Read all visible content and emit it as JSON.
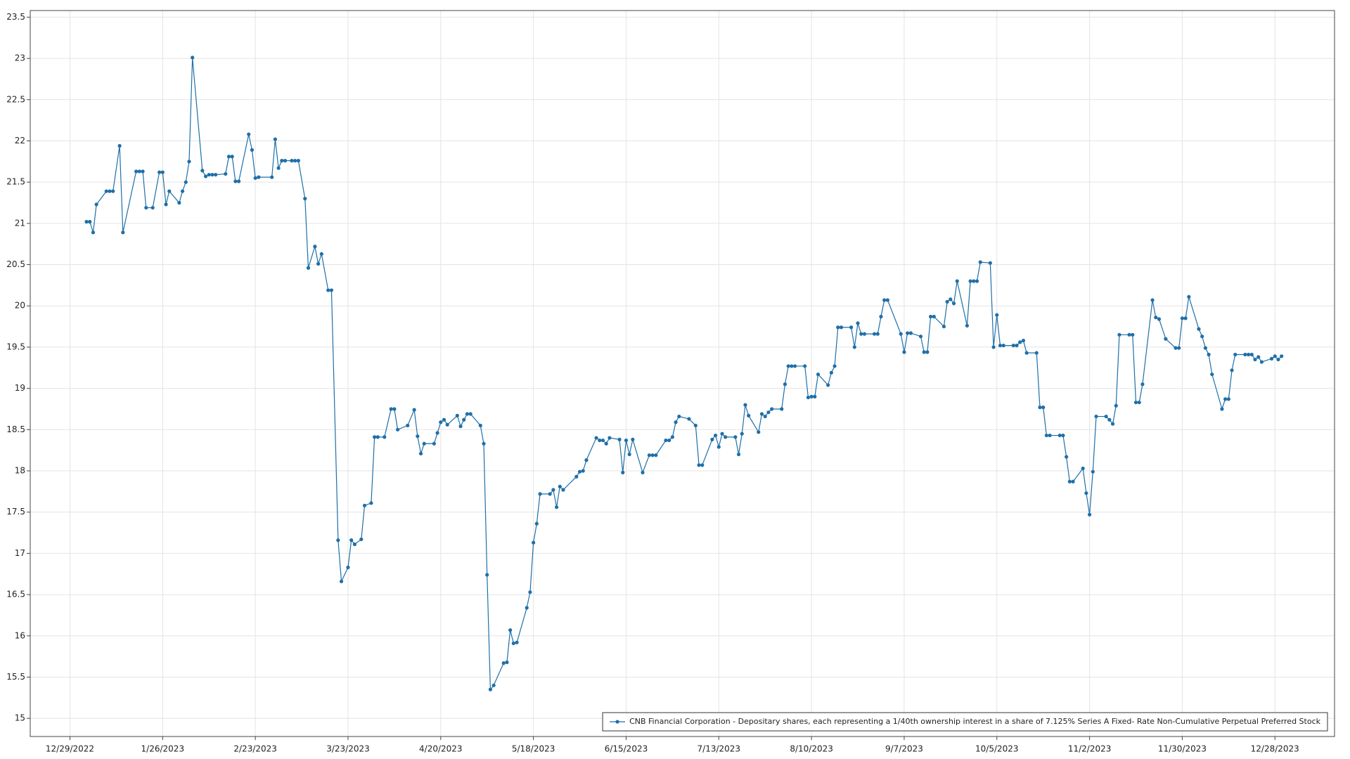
{
  "chart_data": {
    "type": "line",
    "x": [
      "1/3/2023",
      "1/4/2023",
      "1/5/2023",
      "1/6/2023",
      "1/9/2023",
      "1/10/2023",
      "1/11/2023",
      "1/13/2023",
      "1/14/2023",
      "1/18/2023",
      "1/19/2023",
      "1/20/2023",
      "1/21/2023",
      "1/23/2023",
      "1/25/2023",
      "1/26/2023",
      "1/27/2023",
      "1/28/2023",
      "1/31/2023",
      "2/1/2023",
      "2/2/2023",
      "2/3/2023",
      "2/4/2023",
      "2/7/2023",
      "2/8/2023",
      "2/9/2023",
      "2/10/2023",
      "2/11/2023",
      "2/14/2023",
      "2/15/2023",
      "2/16/2023",
      "2/17/2023",
      "2/18/2023",
      "2/21/2023",
      "2/22/2023",
      "2/23/2023",
      "2/24/2023",
      "2/28/2023",
      "3/1/2023",
      "3/2/2023",
      "3/3/2023",
      "3/4/2023",
      "3/6/2023",
      "3/7/2023",
      "3/8/2023",
      "3/10/2023",
      "3/11/2023",
      "3/13/2023",
      "3/14/2023",
      "3/15/2023",
      "3/17/2023",
      "3/18/2023",
      "3/20/2023",
      "3/21/2023",
      "3/23/2023",
      "3/24/2023",
      "3/25/2023",
      "3/27/2023",
      "3/28/2023",
      "3/30/2023",
      "3/31/2023",
      "4/1/2023",
      "4/3/2023",
      "4/5/2023",
      "4/6/2023",
      "4/7/2023",
      "4/10/2023",
      "4/12/2023",
      "4/13/2023",
      "4/14/2023",
      "4/15/2023",
      "4/18/2023",
      "4/19/2023",
      "4/20/2023",
      "4/21/2023",
      "4/22/2023",
      "4/25/2023",
      "4/26/2023",
      "4/27/2023",
      "4/28/2023",
      "4/29/2023",
      "5/2/2023",
      "5/3/2023",
      "5/4/2023",
      "5/5/2023",
      "5/6/2023",
      "5/9/2023",
      "5/10/2023",
      "5/11/2023",
      "5/12/2023",
      "5/13/2023",
      "5/16/2023",
      "5/17/2023",
      "5/18/2023",
      "5/19/2023",
      "5/20/2023",
      "5/23/2023",
      "5/24/2023",
      "5/25/2023",
      "5/26/2023",
      "5/27/2023",
      "5/31/2023",
      "6/1/2023",
      "6/2/2023",
      "6/3/2023",
      "6/6/2023",
      "6/7/2023",
      "6/8/2023",
      "6/9/2023",
      "6/10/2023",
      "6/13/2023",
      "6/14/2023",
      "6/15/2023",
      "6/16/2023",
      "6/17/2023",
      "6/20/2023",
      "6/22/2023",
      "6/23/2023",
      "6/24/2023",
      "6/27/2023",
      "6/28/2023",
      "6/29/2023",
      "6/30/2023",
      "7/1/2023",
      "7/4/2023",
      "7/6/2023",
      "7/7/2023",
      "7/8/2023",
      "7/11/2023",
      "7/12/2023",
      "7/13/2023",
      "7/14/2023",
      "7/15/2023",
      "7/18/2023",
      "7/19/2023",
      "7/20/2023",
      "7/21/2023",
      "7/22/2023",
      "7/25/2023",
      "7/26/2023",
      "7/27/2023",
      "7/28/2023",
      "7/29/2023",
      "8/1/2023",
      "8/2/2023",
      "8/3/2023",
      "8/4/2023",
      "8/5/2023",
      "8/8/2023",
      "8/9/2023",
      "8/10/2023",
      "8/11/2023",
      "8/12/2023",
      "8/15/2023",
      "8/16/2023",
      "8/17/2023",
      "8/18/2023",
      "8/19/2023",
      "8/22/2023",
      "8/23/2023",
      "8/24/2023",
      "8/25/2023",
      "8/26/2023",
      "8/29/2023",
      "8/30/2023",
      "8/31/2023",
      "9/1/2023",
      "9/2/2023",
      "9/6/2023",
      "9/7/2023",
      "9/8/2023",
      "9/9/2023",
      "9/12/2023",
      "9/13/2023",
      "9/14/2023",
      "9/15/2023",
      "9/16/2023",
      "9/19/2023",
      "9/20/2023",
      "9/21/2023",
      "9/22/2023",
      "9/23/2023",
      "9/26/2023",
      "9/27/2023",
      "9/28/2023",
      "9/29/2023",
      "9/30/2023",
      "10/3/2023",
      "10/4/2023",
      "10/5/2023",
      "10/6/2023",
      "10/7/2023",
      "10/10/2023",
      "10/11/2023",
      "10/12/2023",
      "10/13/2023",
      "10/14/2023",
      "10/17/2023",
      "10/18/2023",
      "10/19/2023",
      "10/20/2023",
      "10/21/2023",
      "10/24/2023",
      "10/25/2023",
      "10/26/2023",
      "10/27/2023",
      "10/28/2023",
      "10/31/2023",
      "11/1/2023",
      "11/2/2023",
      "11/3/2023",
      "11/4/2023",
      "11/7/2023",
      "11/8/2023",
      "11/9/2023",
      "11/10/2023",
      "11/11/2023",
      "11/14/2023",
      "11/15/2023",
      "11/16/2023",
      "11/17/2023",
      "11/18/2023",
      "11/21/2023",
      "11/22/2023",
      "11/23/2023",
      "11/25/2023",
      "11/28/2023",
      "11/29/2023",
      "11/30/2023",
      "12/1/2023",
      "12/2/2023",
      "12/5/2023",
      "12/6/2023",
      "12/7/2023",
      "12/8/2023",
      "12/9/2023",
      "12/12/2023",
      "12/13/2023",
      "12/14/2023",
      "12/15/2023",
      "12/16/2023",
      "12/19/2023",
      "12/20/2023",
      "12/21/2023",
      "12/22/2023",
      "12/23/2023",
      "12/24/2023",
      "12/27/2023",
      "12/28/2023",
      "12/29/2023",
      "12/30/2023"
    ],
    "series": [
      {
        "name": "CNB Financial Corporation - Depositary shares, each representing a 1/40th ownership interest in a share of 7.125% Series A Fixed- Rate Non-Cumulative Perpetual Preferred Stock",
        "color": "#1f6fa8",
        "values": [
          21.02,
          21.02,
          20.89,
          21.23,
          21.39,
          21.39,
          21.39,
          21.94,
          20.89,
          21.63,
          21.63,
          21.63,
          21.19,
          21.19,
          21.62,
          21.62,
          21.23,
          21.39,
          21.25,
          21.39,
          21.5,
          21.75,
          23.01,
          21.64,
          21.57,
          21.59,
          21.59,
          21.59,
          21.6,
          21.81,
          21.81,
          21.51,
          21.51,
          22.08,
          21.89,
          21.55,
          21.56,
          21.56,
          22.02,
          21.67,
          21.76,
          21.76,
          21.76,
          21.76,
          21.76,
          21.3,
          20.46,
          20.72,
          20.51,
          20.63,
          20.19,
          20.19,
          17.16,
          16.66,
          16.83,
          17.16,
          17.11,
          17.17,
          17.58,
          17.61,
          18.41,
          18.41,
          18.41,
          18.75,
          18.75,
          18.5,
          18.55,
          18.74,
          18.42,
          18.21,
          18.33,
          18.33,
          18.46,
          18.59,
          18.62,
          18.56,
          18.67,
          18.54,
          18.62,
          18.69,
          18.69,
          18.55,
          18.33,
          16.74,
          15.35,
          15.4,
          15.67,
          15.68,
          16.07,
          15.91,
          15.92,
          16.34,
          16.53,
          17.13,
          17.36,
          17.72,
          17.72,
          17.77,
          17.56,
          17.81,
          17.77,
          17.93,
          17.99,
          18.0,
          18.13,
          18.4,
          18.37,
          18.37,
          18.33,
          18.4,
          18.38,
          17.98,
          18.37,
          18.2,
          18.38,
          17.98,
          18.19,
          18.19,
          18.19,
          18.37,
          18.37,
          18.41,
          18.59,
          18.66,
          18.63,
          18.55,
          18.07,
          18.07,
          18.38,
          18.43,
          18.29,
          18.45,
          18.41,
          18.41,
          18.2,
          18.45,
          18.8,
          18.67,
          18.47,
          18.69,
          18.66,
          18.71,
          18.75,
          18.75,
          19.05,
          19.27,
          19.27,
          19.27,
          19.27,
          18.89,
          18.9,
          18.9,
          19.17,
          19.04,
          19.19,
          19.27,
          19.74,
          19.74,
          19.74,
          19.5,
          19.79,
          19.66,
          19.66,
          19.66,
          19.66,
          19.87,
          20.07,
          20.07,
          19.66,
          19.44,
          19.67,
          19.67,
          19.63,
          19.44,
          19.44,
          19.87,
          19.87,
          19.75,
          20.05,
          20.08,
          20.03,
          20.3,
          19.76,
          20.3,
          20.3,
          20.3,
          20.53,
          20.52,
          19.5,
          19.89,
          19.52,
          19.52,
          19.52,
          19.52,
          19.56,
          19.58,
          19.43,
          19.43,
          18.77,
          18.77,
          18.43,
          18.43,
          18.43,
          18.43,
          18.17,
          17.87,
          17.87,
          18.03,
          17.73,
          17.47,
          17.99,
          18.66,
          18.66,
          18.62,
          18.57,
          18.79,
          19.65,
          19.65,
          19.65,
          18.83,
          18.83,
          19.05,
          20.07,
          19.86,
          19.84,
          19.6,
          19.49,
          19.49,
          19.85,
          19.85,
          20.11,
          19.72,
          19.63,
          19.49,
          19.41,
          19.17,
          18.75,
          18.87,
          18.87,
          19.22,
          19.41,
          19.41,
          19.41,
          19.41,
          19.35,
          19.38,
          19.32,
          19.36,
          19.39,
          19.35,
          19.39
        ]
      }
    ],
    "xlim": [
      "12/17/2022",
      "1/15/2024"
    ],
    "xticks": [
      "12/29/2022",
      "1/26/2023",
      "2/23/2023",
      "3/23/2023",
      "4/20/2023",
      "5/18/2023",
      "6/15/2023",
      "7/13/2023",
      "8/10/2023",
      "9/7/2023",
      "10/5/2023",
      "11/2/2023",
      "11/30/2023",
      "12/28/2023"
    ],
    "ylim": [
      14.78,
      23.58
    ],
    "yticks": [
      15,
      15.5,
      16,
      16.5,
      17,
      17.5,
      18,
      18.5,
      19,
      19.5,
      20,
      20.5,
      21,
      21.5,
      22,
      22.5,
      23,
      23.5
    ],
    "grid": true,
    "legend": "lower right"
  }
}
